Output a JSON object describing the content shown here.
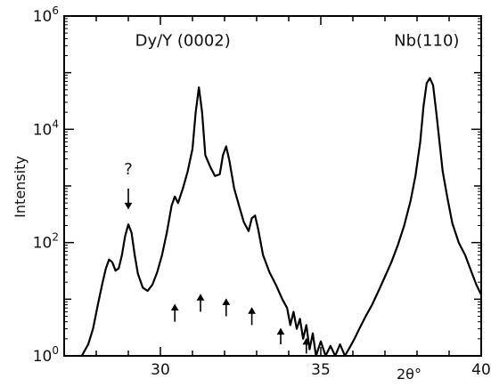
{
  "chart_data": {
    "type": "line",
    "title": "",
    "xlabel": "2θ°",
    "ylabel": "Intensity",
    "xlim": [
      27,
      40
    ],
    "ylim": [
      1,
      1000000
    ],
    "yscale": "log",
    "grid": false,
    "legend": "none",
    "line_color": "#000000",
    "x_ticks": [
      30,
      35,
      40
    ],
    "x_tick_labels": [
      "30",
      "35",
      "40"
    ],
    "y_ticks": [
      1,
      100,
      10000,
      1000000
    ],
    "y_tick_labels": [
      {
        "base": "10",
        "exp": "0"
      },
      {
        "base": "10",
        "exp": "2"
      },
      {
        "base": "10",
        "exp": "4"
      },
      {
        "base": "10",
        "exp": "6"
      }
    ],
    "annotations": [
      {
        "text": "Dy/Y (0002)",
        "x": 30.7,
        "y": 300000
      },
      {
        "text": "Nb(110)",
        "x": 38.3,
        "y": 300000
      },
      {
        "text": "?",
        "x": 29.0,
        "y": 1600
      }
    ],
    "arrows": [
      {
        "x": 29.0,
        "y_from": 900,
        "y_to": 400,
        "direction": "down"
      },
      {
        "x": 30.45,
        "y_from": 4,
        "y_to": 8,
        "direction": "up"
      },
      {
        "x": 31.25,
        "y_from": 6,
        "y_to": 12,
        "direction": "up"
      },
      {
        "x": 32.05,
        "y_from": 5,
        "y_to": 10,
        "direction": "up"
      },
      {
        "x": 32.85,
        "y_from": 3.5,
        "y_to": 7,
        "direction": "up"
      },
      {
        "x": 33.75,
        "y_from": 1.6,
        "y_to": 3,
        "direction": "up"
      },
      {
        "x": 34.55,
        "y_from": 1.1,
        "y_to": 2,
        "direction": "up"
      }
    ],
    "series": [
      {
        "values": [
          [
            27.55,
            1
          ],
          [
            27.75,
            1.6
          ],
          [
            27.9,
            3
          ],
          [
            28.05,
            8
          ],
          [
            28.2,
            20
          ],
          [
            28.3,
            35
          ],
          [
            28.4,
            50
          ],
          [
            28.5,
            45
          ],
          [
            28.6,
            32
          ],
          [
            28.7,
            35
          ],
          [
            28.8,
            60
          ],
          [
            28.9,
            130
          ],
          [
            29.0,
            210
          ],
          [
            29.1,
            150
          ],
          [
            29.2,
            60
          ],
          [
            29.3,
            28
          ],
          [
            29.45,
            16
          ],
          [
            29.6,
            14
          ],
          [
            29.75,
            18
          ],
          [
            29.9,
            30
          ],
          [
            30.05,
            60
          ],
          [
            30.2,
            150
          ],
          [
            30.35,
            450
          ],
          [
            30.45,
            650
          ],
          [
            30.55,
            500
          ],
          [
            30.7,
            900
          ],
          [
            30.85,
            1800
          ],
          [
            31.0,
            4500
          ],
          [
            31.1,
            20000
          ],
          [
            31.2,
            55000
          ],
          [
            31.3,
            20000
          ],
          [
            31.4,
            3500
          ],
          [
            31.55,
            2200
          ],
          [
            31.7,
            1500
          ],
          [
            31.85,
            1600
          ],
          [
            31.95,
            3500
          ],
          [
            32.05,
            5000
          ],
          [
            32.15,
            2800
          ],
          [
            32.3,
            900
          ],
          [
            32.45,
            450
          ],
          [
            32.6,
            230
          ],
          [
            32.75,
            160
          ],
          [
            32.85,
            270
          ],
          [
            32.95,
            300
          ],
          [
            33.05,
            170
          ],
          [
            33.2,
            60
          ],
          [
            33.4,
            30
          ],
          [
            33.6,
            18
          ],
          [
            33.8,
            10
          ],
          [
            33.95,
            7
          ],
          [
            34.05,
            3.5
          ],
          [
            34.15,
            6
          ],
          [
            34.25,
            3
          ],
          [
            34.35,
            4.5
          ],
          [
            34.45,
            2
          ],
          [
            34.55,
            3.5
          ],
          [
            34.65,
            1.3
          ],
          [
            34.75,
            2.5
          ],
          [
            34.85,
            1
          ],
          [
            35.0,
            1.8
          ],
          [
            35.15,
            1
          ],
          [
            35.3,
            1.5
          ],
          [
            35.45,
            1
          ],
          [
            35.6,
            1.6
          ],
          [
            35.75,
            1
          ],
          [
            35.9,
            1.4
          ],
          [
            36.05,
            2
          ],
          [
            36.2,
            3
          ],
          [
            36.4,
            5
          ],
          [
            36.6,
            8
          ],
          [
            36.8,
            14
          ],
          [
            37.0,
            25
          ],
          [
            37.2,
            45
          ],
          [
            37.4,
            90
          ],
          [
            37.6,
            200
          ],
          [
            37.8,
            550
          ],
          [
            37.95,
            1500
          ],
          [
            38.1,
            6000
          ],
          [
            38.2,
            25000
          ],
          [
            38.3,
            65000
          ],
          [
            38.4,
            80000
          ],
          [
            38.5,
            60000
          ],
          [
            38.6,
            20000
          ],
          [
            38.7,
            6000
          ],
          [
            38.8,
            1800
          ],
          [
            38.95,
            600
          ],
          [
            39.1,
            220
          ],
          [
            39.3,
            100
          ],
          [
            39.5,
            60
          ],
          [
            39.7,
            30
          ],
          [
            39.85,
            18
          ],
          [
            40.0,
            12
          ]
        ]
      }
    ]
  }
}
